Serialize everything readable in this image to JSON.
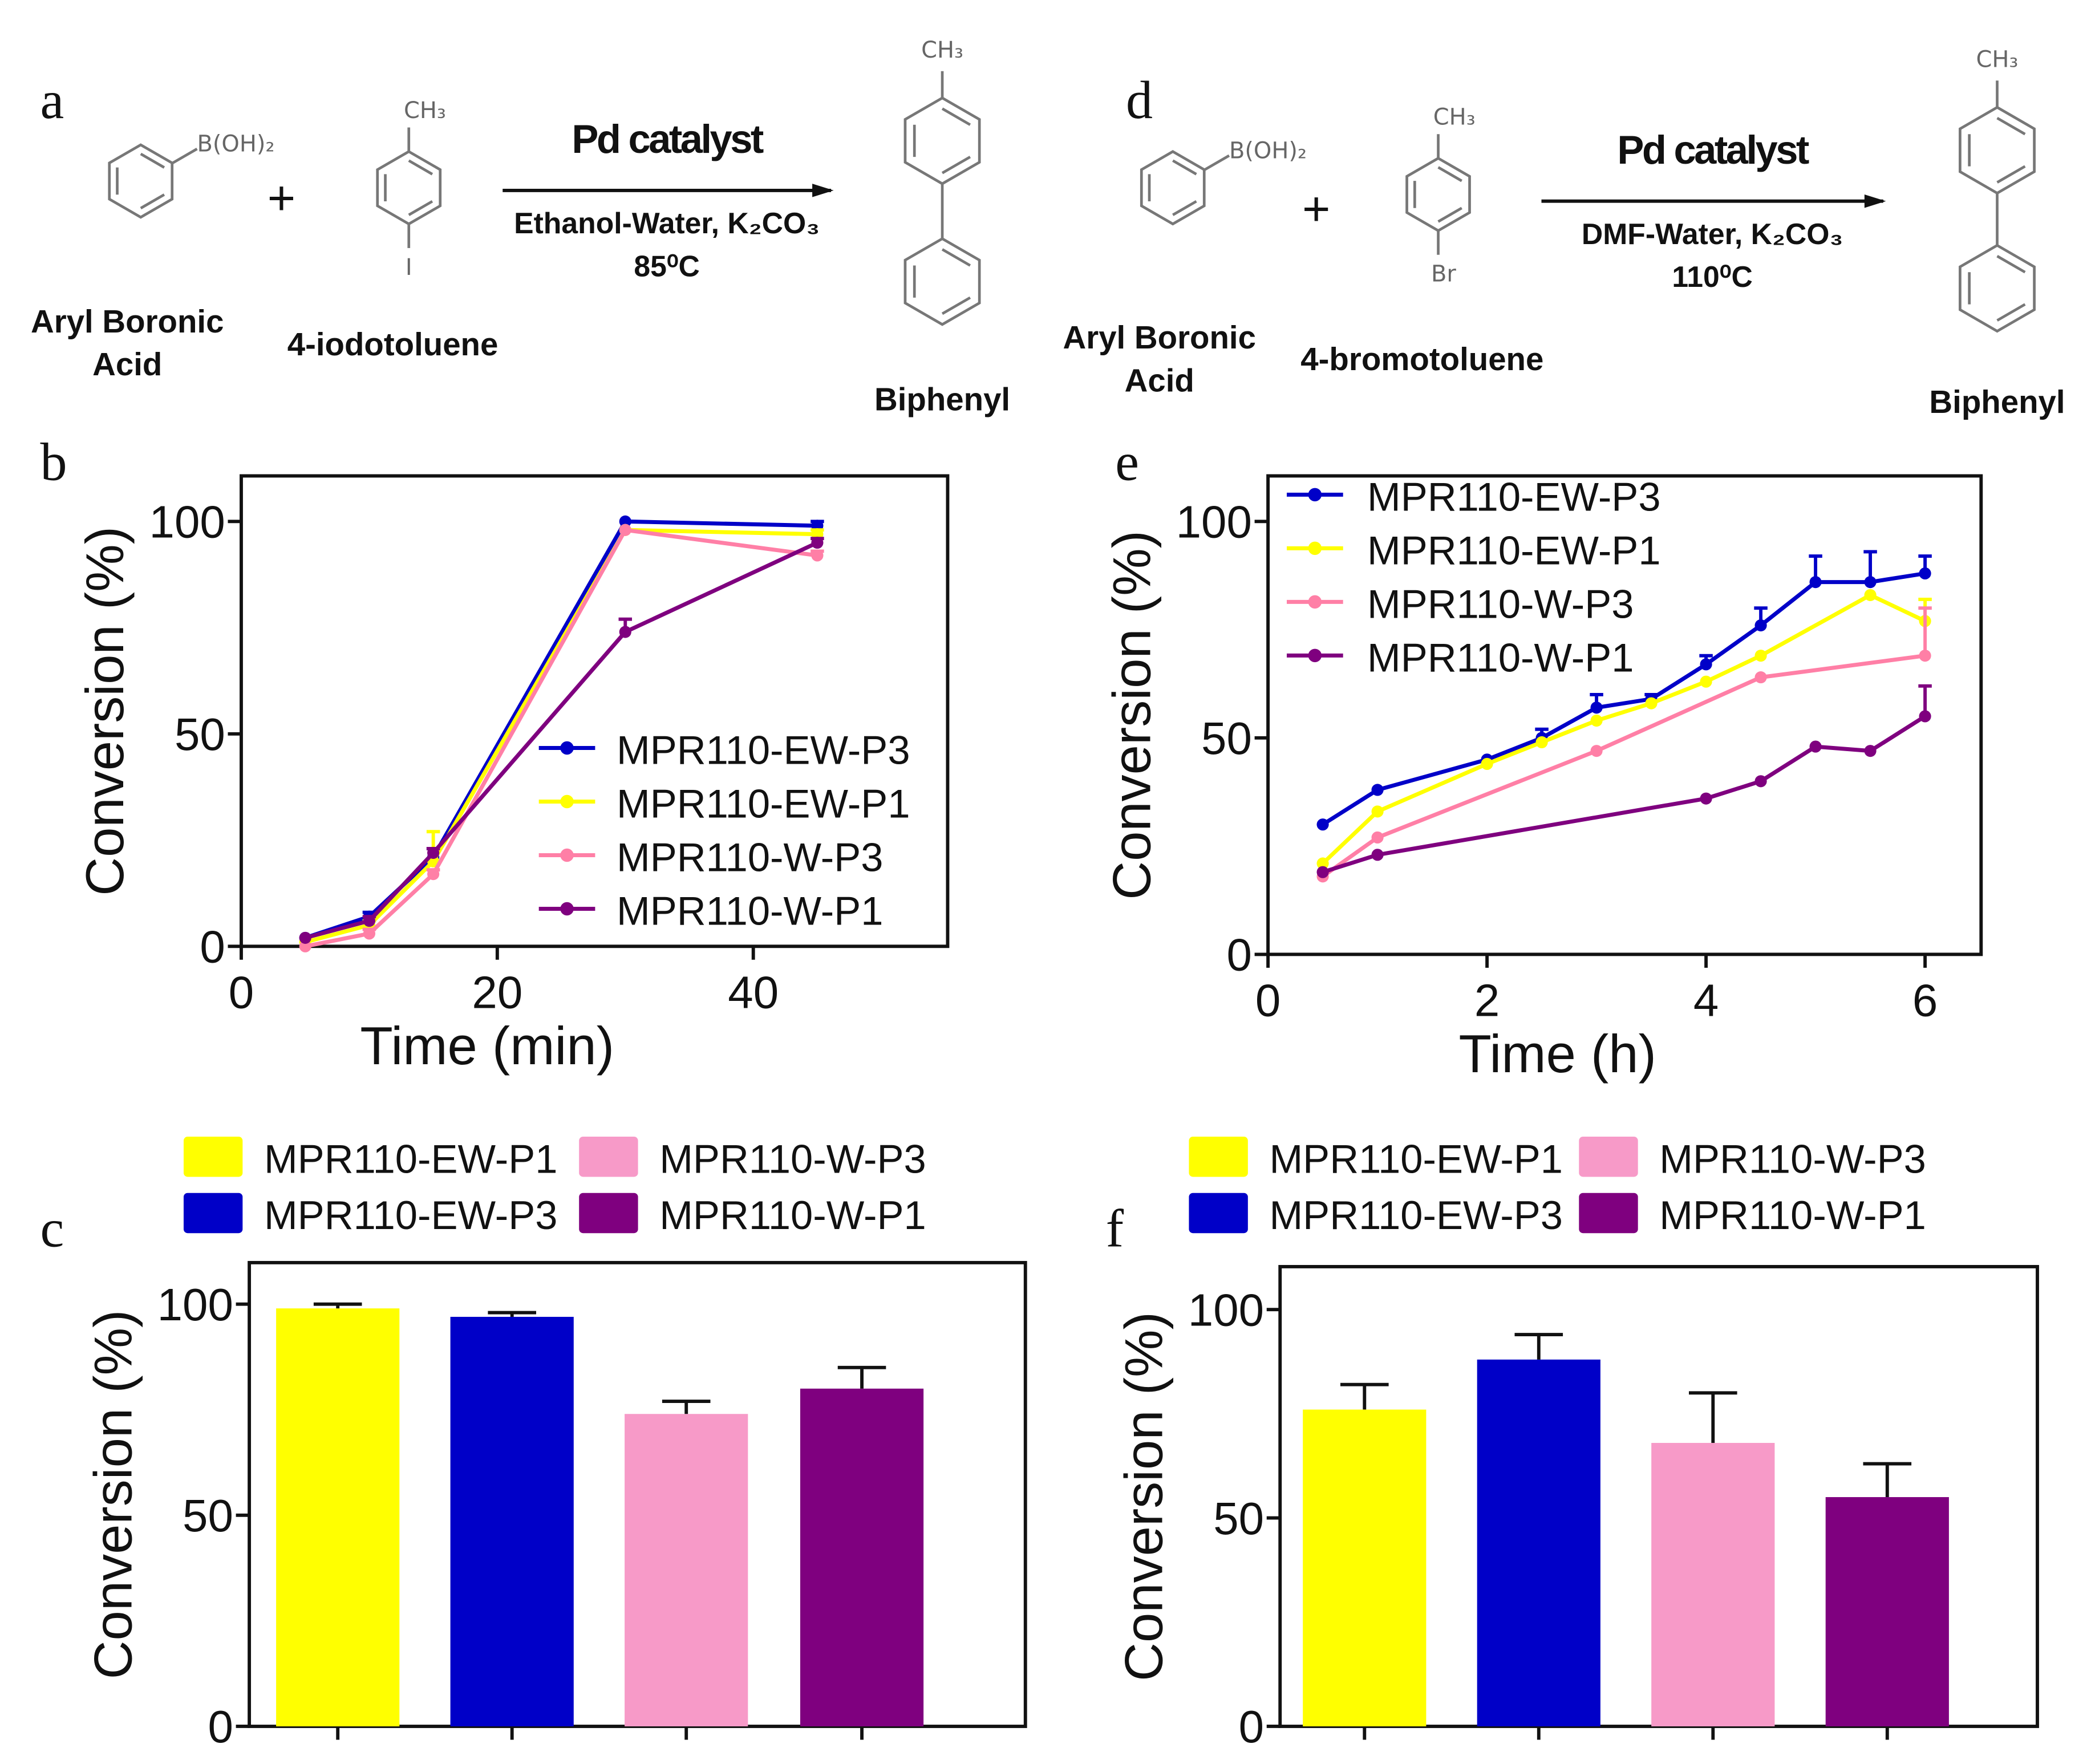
{
  "panel_letters": {
    "a": "a",
    "b": "b",
    "c": "c",
    "d": "d",
    "e": "e",
    "f": "f"
  },
  "scheme_a": {
    "reagent1_group": "B(OH)₂",
    "reagent1_label_line1": "Aryl Boronic",
    "reagent1_label_line2": "Acid",
    "plus": "+",
    "reagent2_top": "CH₃",
    "reagent2_bottom": "I",
    "reagent2_label": "4-iodotoluene",
    "catalyst": "Pd catalyst",
    "conditions": "Ethanol-Water, K₂CO₃",
    "temperature": "85⁰C",
    "product_top": "CH₃",
    "product_label": "Biphenyl"
  },
  "scheme_d": {
    "reagent1_group": "B(OH)₂",
    "reagent1_label_line1": "Aryl Boronic",
    "reagent1_label_line2": "Acid",
    "plus": "+",
    "reagent2_top": "CH₃",
    "reagent2_bottom": "Br",
    "reagent2_label": "4-bromotoluene",
    "catalyst": "Pd catalyst",
    "conditions": "DMF-Water, K₂CO₃",
    "temperature": "110⁰C",
    "product_top": "CH₃",
    "product_label": "Biphenyl"
  },
  "colors": {
    "MPR110-EW-P3": "#0000c8",
    "MPR110-EW-P1": "#ffff00",
    "MPR110-W-P3": "#ff7fa6",
    "MPR110-W-P1": "#7f007f",
    "bar_W-P3": "#f79ac8"
  },
  "chart_data": [
    {
      "id": "b",
      "type": "line",
      "xlabel": "Time (min)",
      "ylabel": "Conversion (%)",
      "xlim": [
        0,
        55
      ],
      "ylim": [
        0,
        110
      ],
      "xticks": [
        "0",
        "20",
        "40"
      ],
      "xtick_values": [
        0,
        20,
        40
      ],
      "yticks": [
        "0",
        "50",
        "100"
      ],
      "ytick_values": [
        0,
        50,
        100
      ],
      "legend_position": "bottom-right",
      "grid": false,
      "series": [
        {
          "name": "MPR110-EW-P3",
          "x": [
            5,
            10,
            15,
            30,
            45
          ],
          "y": [
            2,
            7,
            21,
            100,
            99
          ],
          "err": [
            0,
            1,
            2,
            0,
            1
          ]
        },
        {
          "name": "MPR110-EW-P1",
          "x": [
            5,
            10,
            15,
            30,
            45
          ],
          "y": [
            1,
            5,
            20,
            98,
            97
          ],
          "err": [
            0,
            1,
            7,
            0,
            1
          ]
        },
        {
          "name": "MPR110-W-P3",
          "x": [
            5,
            10,
            15,
            30,
            45
          ],
          "y": [
            0,
            3,
            17,
            98,
            92
          ],
          "err": [
            0,
            1,
            1,
            0,
            1
          ]
        },
        {
          "name": "MPR110-W-P1",
          "x": [
            5,
            10,
            15,
            30,
            45
          ],
          "y": [
            2,
            6,
            22,
            74,
            95
          ],
          "err": [
            0,
            1,
            1,
            3,
            1
          ]
        }
      ]
    },
    {
      "id": "e",
      "type": "line",
      "xlabel": "Time (h)",
      "ylabel": "Conversion (%)",
      "xlim": [
        0,
        6.5
      ],
      "ylim": [
        0,
        110
      ],
      "xticks": [
        "0",
        "2",
        "4",
        "6"
      ],
      "xtick_values": [
        0,
        2,
        4,
        6
      ],
      "yticks": [
        "0",
        "50",
        "100"
      ],
      "ytick_values": [
        0,
        50,
        100
      ],
      "legend_position": "top-left",
      "grid": false,
      "series": [
        {
          "name": "MPR110-EW-P3",
          "x": [
            0.5,
            1,
            2,
            2.5,
            3,
            3.5,
            4,
            4.5,
            5,
            5.5,
            6
          ],
          "y": [
            30,
            38,
            45,
            50,
            57,
            59,
            67,
            76,
            86,
            86,
            88
          ],
          "err": [
            0,
            0,
            0,
            2,
            3,
            1,
            2,
            4,
            6,
            7,
            4
          ]
        },
        {
          "name": "MPR110-EW-P1",
          "x": [
            0.5,
            1,
            2,
            2.5,
            3,
            3.5,
            4,
            4.5,
            5.5,
            6
          ],
          "y": [
            21,
            33,
            44,
            49,
            54,
            58,
            63,
            69,
            83,
            77
          ],
          "err": [
            0,
            0,
            0,
            0,
            0,
            0,
            0,
            0,
            0,
            5
          ]
        },
        {
          "name": "MPR110-W-P3",
          "x": [
            0.5,
            1,
            3,
            4.5,
            6
          ],
          "y": [
            18,
            27,
            47,
            64,
            69
          ],
          "err": [
            0,
            0,
            0,
            0,
            11
          ]
        },
        {
          "name": "MPR110-W-P1",
          "x": [
            0.5,
            1,
            4,
            4.5,
            5,
            5.5,
            6
          ],
          "y": [
            19,
            23,
            36,
            40,
            48,
            47,
            55
          ],
          "err": [
            0,
            0,
            0,
            0,
            0,
            0,
            7
          ]
        }
      ]
    },
    {
      "id": "c",
      "type": "bar",
      "ylabel": "Conversion (%)",
      "ylim": [
        0,
        110
      ],
      "yticks": [
        "0",
        "50",
        "100"
      ],
      "ytick_values": [
        0,
        50,
        100
      ],
      "legend_position": "top",
      "categories": [
        "MPR110-EW-P1",
        "MPR110-EW-P3",
        "MPR110-W-P3",
        "MPR110-W-P1"
      ],
      "values": [
        99,
        97,
        74,
        80
      ],
      "err": [
        1,
        1,
        3,
        5
      ]
    },
    {
      "id": "f",
      "type": "bar",
      "ylabel": "Conversion (%)",
      "ylim": [
        0,
        110
      ],
      "yticks": [
        "0",
        "50",
        "100"
      ],
      "ytick_values": [
        0,
        50,
        100
      ],
      "legend_position": "top",
      "categories": [
        "MPR110-EW-P1",
        "MPR110-EW-P3",
        "MPR110-W-P3",
        "MPR110-W-P1"
      ],
      "values": [
        76,
        88,
        68,
        55
      ],
      "err": [
        6,
        6,
        12,
        8
      ]
    }
  ]
}
